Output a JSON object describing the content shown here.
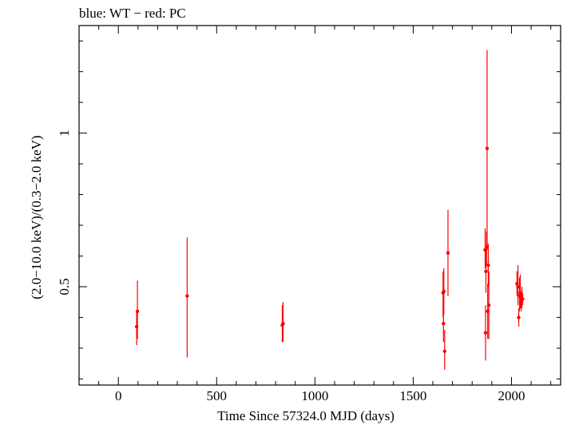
{
  "title": "blue: WT − red: PC",
  "chart_data": {
    "type": "scatter",
    "xlabel": "Time Since 57324.0 MJD (days)",
    "ylabel": "(2.0−10.0 keV)/(0.3−2.0 keV)",
    "xlim": [
      -200,
      2250
    ],
    "ylim": [
      0.18,
      1.35
    ],
    "x_ticks": [
      0,
      500,
      1000,
      1500,
      2000
    ],
    "x_tick_labels": [
      "0",
      "500",
      "1000",
      "1500",
      "2000"
    ],
    "y_major_ticks": [
      0.5,
      1
    ],
    "y_tick_labels": [
      "0.5",
      "1"
    ],
    "grid": false,
    "series": [
      {
        "color": "#ff0000",
        "points": [
          {
            "x": 93,
            "y": 0.37,
            "ylo": 0.31,
            "yhi": 0.42
          },
          {
            "x": 97,
            "y": 0.42,
            "ylo": 0.33,
            "yhi": 0.52
          },
          {
            "x": 350,
            "y": 0.47,
            "ylo": 0.27,
            "yhi": 0.66
          },
          {
            "x": 834,
            "y": 0.375,
            "ylo": 0.32,
            "yhi": 0.44
          },
          {
            "x": 838,
            "y": 0.38,
            "ylo": 0.32,
            "yhi": 0.45
          },
          {
            "x": 1652,
            "y": 0.48,
            "ylo": 0.4,
            "yhi": 0.55
          },
          {
            "x": 1654,
            "y": 0.38,
            "ylo": 0.32,
            "yhi": 0.45
          },
          {
            "x": 1656,
            "y": 0.485,
            "ylo": 0.41,
            "yhi": 0.56
          },
          {
            "x": 1660,
            "y": 0.29,
            "ylo": 0.23,
            "yhi": 0.36
          },
          {
            "x": 1677,
            "y": 0.61,
            "ylo": 0.47,
            "yhi": 0.75
          },
          {
            "x": 1866,
            "y": 0.62,
            "ylo": 0.56,
            "yhi": 0.69
          },
          {
            "x": 1868,
            "y": 0.35,
            "ylo": 0.26,
            "yhi": 0.44
          },
          {
            "x": 1870,
            "y": 0.55,
            "ylo": 0.48,
            "yhi": 0.62
          },
          {
            "x": 1873,
            "y": 0.63,
            "ylo": 0.57,
            "yhi": 0.68
          },
          {
            "x": 1876,
            "y": 0.95,
            "ylo": 0.62,
            "yhi": 1.27
          },
          {
            "x": 1879,
            "y": 0.42,
            "ylo": 0.33,
            "yhi": 0.51
          },
          {
            "x": 1882,
            "y": 0.57,
            "ylo": 0.5,
            "yhi": 0.64
          },
          {
            "x": 1885,
            "y": 0.44,
            "ylo": 0.33,
            "yhi": 0.55
          },
          {
            "x": 2028,
            "y": 0.51,
            "ylo": 0.47,
            "yhi": 0.55
          },
          {
            "x": 2033,
            "y": 0.5,
            "ylo": 0.44,
            "yhi": 0.57
          },
          {
            "x": 2037,
            "y": 0.4,
            "ylo": 0.37,
            "yhi": 0.43
          },
          {
            "x": 2041,
            "y": 0.47,
            "ylo": 0.42,
            "yhi": 0.53
          },
          {
            "x": 2045,
            "y": 0.48,
            "ylo": 0.43,
            "yhi": 0.54
          },
          {
            "x": 2049,
            "y": 0.45,
            "ylo": 0.42,
            "yhi": 0.48
          },
          {
            "x": 2053,
            "y": 0.46,
            "ylo": 0.43,
            "yhi": 0.5
          },
          {
            "x": 2057,
            "y": 0.46,
            "ylo": 0.44,
            "yhi": 0.48
          }
        ]
      }
    ]
  }
}
